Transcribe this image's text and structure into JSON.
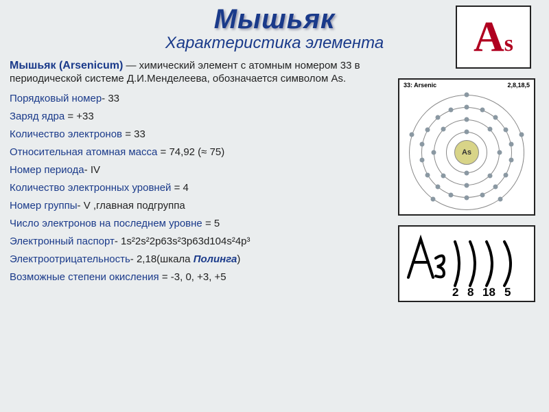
{
  "title": "Мышьяк",
  "subtitle": "Характеристика элемента",
  "intro": {
    "lead": "Мышьяк (Arsenicum)",
    "text": " — химический элемент с атомным номером 33 в периодической системе Д.И.Менделеева, обозначается символом As."
  },
  "rows": [
    {
      "label": "Порядковый номер",
      "sep": "- ",
      "value": "33"
    },
    {
      "label": "Заряд ядра ",
      "sep": "= ",
      "value": "+33"
    },
    {
      "label": "Количество электронов ",
      "sep": "= ",
      "value": "33"
    },
    {
      "label": "Относительная атомная масса ",
      "sep": "= ",
      "value": "74,92 (≈ 75)"
    },
    {
      "label": "Номер периода",
      "sep": "- ",
      "value": "IV"
    },
    {
      "label": "Количество электронных уровней ",
      "sep": "= ",
      "value": "4"
    },
    {
      "label": "Номер группы",
      "sep": "- ",
      "value": "V ,главная подгруппа"
    },
    {
      "label": "Число электронов на последнем уровне ",
      "sep": "= ",
      "value": "5"
    },
    {
      "label": "Электронный паспорт",
      "sep": "- ",
      "value": "1s²2s²2p63s²3p63d104s²4p³"
    },
    {
      "label": "Электроотрицательность",
      "sep": "- ",
      "value": "2,18(шкала ",
      "link": "Полинга",
      "tail": ")"
    },
    {
      "label": "Возможные степени окисления ",
      "sep": "=  ",
      "value": "-3, 0, +3, +5"
    }
  ],
  "box1": {
    "letter": "A",
    "sub": "s"
  },
  "box2": {
    "header_left": "33: Arsenic",
    "header_right": "2,8,18,5",
    "nucleus_label": "As",
    "shells": [
      {
        "radius": 30,
        "electrons": 2
      },
      {
        "radius": 48,
        "electrons": 8
      },
      {
        "radius": 66,
        "electrons": 18
      },
      {
        "radius": 84,
        "electrons": 5
      }
    ],
    "electron_color": "#8a98a2",
    "shell_color": "#888888",
    "nucleus_fill": "#d8d488"
  },
  "box3": {
    "symbol": "As",
    "counts": [
      "2",
      "8",
      "18",
      "5"
    ]
  },
  "colors": {
    "bg": "#eaedee",
    "heading": "#1a3a8a",
    "text": "#222222",
    "accent_red": "#b00020",
    "box_border": "#222222"
  }
}
